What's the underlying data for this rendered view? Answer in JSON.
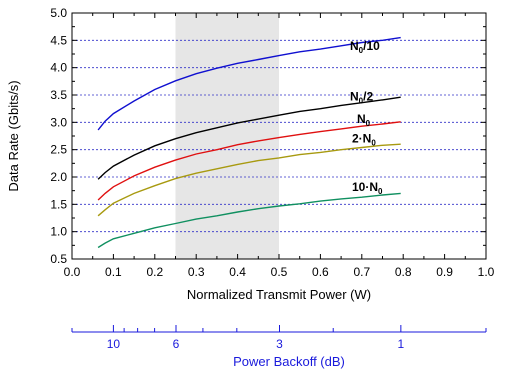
{
  "chart_data": {
    "type": "line",
    "xlabel": "Normalized Transmit Power (W)",
    "ylabel": "Data Rate (Gbits/s)",
    "xlim": [
      0.0,
      1.0
    ],
    "ylim": [
      0.5,
      5.0
    ],
    "x_ticks": [
      "0.0",
      "0.1",
      "0.2",
      "0.3",
      "0.4",
      "0.5",
      "0.6",
      "0.7",
      "0.8",
      "0.9",
      "1.0"
    ],
    "y_ticks": [
      "0.5",
      "1.0",
      "1.5",
      "2.0",
      "2.5",
      "3.0",
      "3.5",
      "4.0",
      "4.5",
      "5.0"
    ],
    "grid": "horizontal dotted",
    "shaded_region": [
      0.25,
      0.5
    ],
    "secondary_axis": {
      "label": "Power Backoff (dB)",
      "position": "bottom",
      "ticks": [
        {
          "label": "10",
          "db": 10
        },
        {
          "label": "6",
          "db": 6
        },
        {
          "label": "3",
          "db": 3
        },
        {
          "label": "1",
          "db": 1
        }
      ],
      "minor_ticks_db": [
        9,
        8,
        7,
        5,
        4,
        2,
        0
      ],
      "color": "#1a1adc"
    },
    "series": [
      {
        "name": "N0/10",
        "label_main": "N",
        "label_sub": "0",
        "label_suffix": "/10",
        "color": "#1010d0",
        "x": [
          0.063,
          0.08,
          0.1,
          0.15,
          0.2,
          0.25,
          0.3,
          0.35,
          0.4,
          0.45,
          0.5,
          0.55,
          0.6,
          0.65,
          0.7,
          0.75,
          0.794
        ],
        "y": [
          2.86,
          3.02,
          3.16,
          3.39,
          3.6,
          3.76,
          3.89,
          3.99,
          4.08,
          4.15,
          4.22,
          4.29,
          4.34,
          4.4,
          4.46,
          4.5,
          4.55
        ]
      },
      {
        "name": "N0/2",
        "label_main": "N",
        "label_sub": "0",
        "label_suffix": "/2",
        "color": "#000000",
        "x": [
          0.063,
          0.08,
          0.1,
          0.15,
          0.2,
          0.25,
          0.3,
          0.35,
          0.4,
          0.45,
          0.5,
          0.55,
          0.6,
          0.65,
          0.7,
          0.75,
          0.794
        ],
        "y": [
          1.96,
          2.08,
          2.2,
          2.4,
          2.57,
          2.7,
          2.81,
          2.9,
          2.99,
          3.06,
          3.13,
          3.2,
          3.25,
          3.31,
          3.36,
          3.41,
          3.46
        ]
      },
      {
        "name": "N0",
        "label_main": "N",
        "label_sub": "0",
        "label_suffix": "",
        "color": "#e01010",
        "x": [
          0.063,
          0.08,
          0.1,
          0.15,
          0.2,
          0.25,
          0.3,
          0.35,
          0.4,
          0.45,
          0.5,
          0.55,
          0.6,
          0.65,
          0.7,
          0.75,
          0.794
        ],
        "y": [
          1.58,
          1.7,
          1.82,
          2.02,
          2.18,
          2.31,
          2.42,
          2.5,
          2.59,
          2.66,
          2.72,
          2.78,
          2.83,
          2.88,
          2.93,
          2.97,
          3.01
        ]
      },
      {
        "name": "2·N0",
        "label_main": "2·N",
        "label_sub": "0",
        "label_suffix": "",
        "color": "#a89a10",
        "x": [
          0.063,
          0.08,
          0.1,
          0.15,
          0.2,
          0.25,
          0.3,
          0.35,
          0.4,
          0.45,
          0.5,
          0.55,
          0.6,
          0.65,
          0.7,
          0.75,
          0.794
        ],
        "y": [
          1.29,
          1.4,
          1.52,
          1.7,
          1.84,
          1.97,
          2.07,
          2.15,
          2.23,
          2.3,
          2.35,
          2.41,
          2.45,
          2.5,
          2.54,
          2.58,
          2.6
        ]
      },
      {
        "name": "10·N0",
        "label_main": "10·N",
        "label_sub": "0",
        "label_suffix": "",
        "color": "#109060",
        "x": [
          0.063,
          0.08,
          0.1,
          0.15,
          0.2,
          0.25,
          0.3,
          0.35,
          0.4,
          0.45,
          0.5,
          0.55,
          0.6,
          0.65,
          0.7,
          0.75,
          0.794
        ],
        "y": [
          0.71,
          0.79,
          0.87,
          0.97,
          1.07,
          1.15,
          1.23,
          1.29,
          1.36,
          1.42,
          1.47,
          1.51,
          1.56,
          1.6,
          1.63,
          1.67,
          1.7
        ]
      }
    ]
  }
}
